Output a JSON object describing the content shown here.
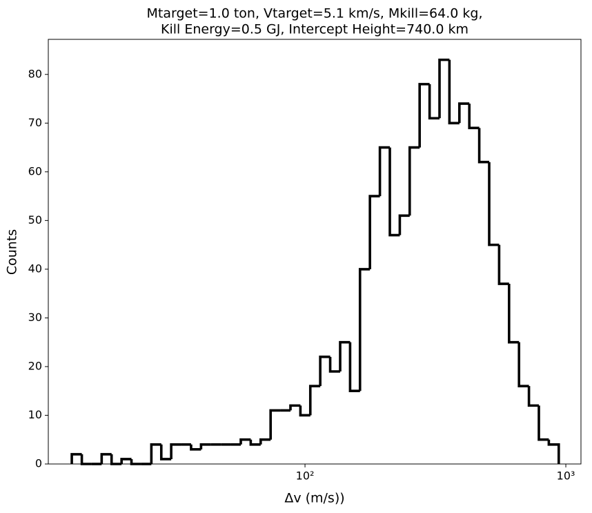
{
  "chart_data": {
    "type": "histogram",
    "title": [
      "Mtarget=1.0 ton, Vtarget=5.1 km/s, Mkill=64.0 kg,",
      "Kill Energy=0.5 GJ, Intercept Height=740.0 km"
    ],
    "xlabel": "Δv (m/s))",
    "ylabel": "Counts",
    "xscale": "log",
    "color": "#000000",
    "bins": [
      12.76,
      13.94,
      15.21,
      16.61,
      18.13,
      19.8,
      21.61,
      23.59,
      25.76,
      28.12,
      30.69,
      33.51,
      36.58,
      39.94,
      43.6,
      47.6,
      51.96,
      56.73,
      61.93,
      67.61,
      73.81,
      80.58,
      87.96,
      96.03,
      104.8,
      114.4,
      124.9,
      136.4,
      148.9,
      162.5,
      177.4,
      193.7,
      211.5,
      230.9,
      252.0,
      275.1,
      300.4,
      327.9,
      357.9,
      390.8,
      426.6,
      465.7,
      508.4,
      555.0,
      605.9,
      661.5,
      722.1,
      788.3,
      860.6,
      939.5
    ],
    "values": [
      2,
      0,
      0,
      2,
      0,
      1,
      0,
      0,
      4,
      1,
      4,
      4,
      3,
      4,
      4,
      4,
      4,
      5,
      4,
      5,
      11,
      11,
      12,
      10,
      16,
      22,
      19,
      25,
      15,
      40,
      55,
      65,
      47,
      51,
      65,
      78,
      71,
      83,
      70,
      74,
      69,
      62,
      45,
      37,
      25,
      16,
      12,
      5,
      4
    ],
    "xlim": [
      10.37,
      1143
    ],
    "ylim": [
      0,
      87.2
    ],
    "xticks": [
      {
        "value": 100,
        "label": "10²"
      },
      {
        "value": 1000,
        "label": "10³"
      }
    ],
    "yticks": [
      0,
      10,
      20,
      30,
      40,
      50,
      60,
      70,
      80
    ]
  }
}
